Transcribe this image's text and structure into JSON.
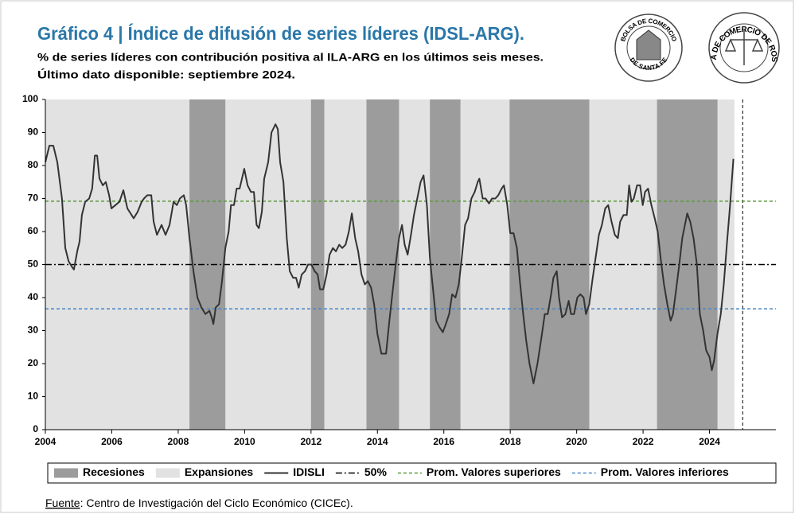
{
  "chart_data": {
    "type": "line",
    "title": "Gráfico 4 | Índice de difusión de series líderes (IDSL-ARG).",
    "subtitle": [
      "% de series líderes con contribución positiva al ILA-ARG en los últimos seis meses.",
      "Último dato disponible: septiembre 2024."
    ],
    "logos": [
      {
        "top": "BOLSA DE COMERCIO",
        "bottom": "DE SANTA FE"
      },
      {
        "top": "BOLSA DE COMERCIO DE ROSARIO"
      }
    ],
    "xlim": [
      2004,
      2026
    ],
    "xticks": [
      2004,
      2006,
      2008,
      2010,
      2012,
      2014,
      2016,
      2018,
      2020,
      2022,
      2024
    ],
    "ylim": [
      0,
      100
    ],
    "yticks": [
      0,
      10,
      20,
      30,
      40,
      50,
      60,
      70,
      80,
      90,
      100
    ],
    "vline": 2025,
    "expansions": {
      "name": "Expansiones",
      "color": "#e2e2e2",
      "periods": [
        [
          2004,
          2024.75
        ]
      ]
    },
    "recessions": {
      "name": "Recesiones",
      "color": "#9c9c9c",
      "periods": [
        [
          2008.34,
          2009.42
        ],
        [
          2012.0,
          2012.4
        ],
        [
          2013.67,
          2014.65
        ],
        [
          2015.58,
          2016.5
        ],
        [
          2017.98,
          2020.38
        ],
        [
          2022.42,
          2024.24
        ]
      ]
    },
    "x": [
      2004.0,
      2004.12,
      2004.24,
      2004.36,
      2004.5,
      2004.6,
      2004.7,
      2004.82,
      2004.86,
      2004.96,
      2005.03,
      2005.1,
      2005.2,
      2005.32,
      2005.41,
      2005.49,
      2005.56,
      2005.63,
      2005.73,
      2005.82,
      2005.92,
      2005.99,
      2006.11,
      2006.23,
      2006.35,
      2006.47,
      2006.66,
      2006.78,
      2006.9,
      2006.97,
      2007.07,
      2007.19,
      2007.26,
      2007.36,
      2007.5,
      2007.62,
      2007.74,
      2007.86,
      2007.96,
      2008.05,
      2008.17,
      2008.24,
      2008.34,
      2008.46,
      2008.58,
      2008.7,
      2008.82,
      2008.94,
      2009.01,
      2009.06,
      2009.13,
      2009.23,
      2009.32,
      2009.42,
      2009.52,
      2009.59,
      2009.68,
      2009.76,
      2009.85,
      2009.92,
      2009.99,
      2010.09,
      2010.19,
      2010.28,
      2010.36,
      2010.43,
      2010.52,
      2010.59,
      2010.71,
      2010.81,
      2010.93,
      2011.0,
      2011.07,
      2011.17,
      2011.27,
      2011.36,
      2011.46,
      2011.55,
      2011.63,
      2011.72,
      2011.82,
      2011.91,
      2012.01,
      2012.11,
      2012.2,
      2012.27,
      2012.37,
      2012.47,
      2012.56,
      2012.66,
      2012.75,
      2012.85,
      2012.94,
      2013.04,
      2013.14,
      2013.23,
      2013.33,
      2013.42,
      2013.52,
      2013.62,
      2013.71,
      2013.81,
      2013.9,
      2014.0,
      2014.12,
      2014.26,
      2014.36,
      2014.46,
      2014.55,
      2014.65,
      2014.74,
      2014.82,
      2014.91,
      2015.01,
      2015.1,
      2015.2,
      2015.3,
      2015.39,
      2015.49,
      2015.58,
      2015.68,
      2015.77,
      2015.87,
      2015.97,
      2016.06,
      2016.16,
      2016.25,
      2016.35,
      2016.45,
      2016.54,
      2016.64,
      2016.73,
      2016.83,
      2016.93,
      2017.02,
      2017.07,
      2017.17,
      2017.26,
      2017.36,
      2017.45,
      2017.55,
      2017.64,
      2017.74,
      2017.81,
      2017.91,
      2018.0,
      2018.1,
      2018.2,
      2018.29,
      2018.39,
      2018.48,
      2018.58,
      2018.7,
      2018.82,
      2018.94,
      2019.04,
      2019.13,
      2019.23,
      2019.3,
      2019.4,
      2019.47,
      2019.56,
      2019.66,
      2019.76,
      2019.83,
      2019.92,
      2020.02,
      2020.11,
      2020.21,
      2020.28,
      2020.38,
      2020.47,
      2020.57,
      2020.67,
      2020.76,
      2020.86,
      2020.95,
      2021.05,
      2021.15,
      2021.24,
      2021.31,
      2021.41,
      2021.51,
      2021.58,
      2021.65,
      2021.72,
      2021.82,
      2021.91,
      2021.99,
      2022.06,
      2022.15,
      2022.25,
      2022.35,
      2022.44,
      2022.54,
      2022.63,
      2022.73,
      2022.83,
      2022.9,
      2022.99,
      2023.09,
      2023.18,
      2023.28,
      2023.33,
      2023.42,
      2023.52,
      2023.62,
      2023.71,
      2023.81,
      2023.9,
      2024.0,
      2024.07,
      2024.14,
      2024.24,
      2024.34,
      2024.43,
      2024.53,
      2024.62,
      2024.72
    ],
    "series": [
      {
        "name": "IDISLI",
        "color": "#333333",
        "values": [
          81,
          86,
          86,
          81,
          70,
          55,
          51,
          49,
          48.5,
          54,
          57,
          65,
          69,
          70,
          73,
          83,
          83,
          76,
          74,
          75,
          71,
          67,
          68,
          69,
          72.5,
          67,
          64,
          66,
          69,
          70,
          71,
          71,
          63,
          59,
          62,
          59,
          62,
          69,
          68,
          70,
          71,
          68,
          58,
          48,
          40,
          37,
          35,
          36,
          34,
          32,
          37,
          38,
          45,
          55,
          60,
          68,
          68,
          73,
          73,
          76,
          79,
          74,
          72,
          72,
          62,
          61,
          66,
          76,
          81,
          90,
          92.5,
          91,
          81,
          75,
          58,
          48,
          46,
          46,
          43,
          47,
          48,
          50,
          50,
          48,
          47,
          42.5,
          42.5,
          47,
          53,
          55,
          54,
          56,
          55,
          56,
          60,
          65.5,
          58,
          54,
          47,
          44,
          45,
          43,
          38,
          29,
          23,
          23,
          33,
          42,
          50,
          58,
          62,
          56,
          53,
          59,
          65,
          70,
          75,
          77,
          68,
          52,
          42,
          33,
          31,
          29.5,
          32,
          35,
          41,
          40,
          44,
          52,
          62,
          64,
          70,
          72,
          75,
          76,
          70,
          70,
          68.5,
          70,
          70,
          71,
          73,
          74,
          68,
          59.5,
          59.5,
          55,
          45,
          35,
          27,
          20,
          14,
          20,
          28,
          35,
          35,
          41,
          46,
          48,
          40,
          34,
          35,
          39,
          35,
          35,
          40,
          41,
          40,
          35,
          38,
          45,
          52,
          59,
          62,
          67,
          68,
          63,
          59,
          58,
          63,
          65,
          65,
          74,
          69,
          70,
          74,
          74,
          68,
          72,
          73,
          68,
          64,
          60,
          51,
          44,
          38,
          33,
          35,
          42,
          50,
          58,
          63,
          65.5,
          63,
          58,
          50,
          35,
          30,
          24,
          22,
          18,
          21,
          29,
          35,
          44,
          57,
          68,
          82
        ]
      }
    ],
    "reference_lines": [
      {
        "name": "50%",
        "value": 50,
        "color": "#000000",
        "dash": "8 3 2 3"
      },
      {
        "name": "Prom. Valores superiores",
        "value": 69.2,
        "color": "#5b9a3c",
        "dash": "4 3"
      },
      {
        "name": "Prom. Valores inferiores",
        "value": 36.6,
        "color": "#4a86c5",
        "dash": "4 3"
      }
    ],
    "source": {
      "label": "Fuente",
      "text": ": Centro de Investigación del Ciclo Económico (CICEc)."
    }
  }
}
